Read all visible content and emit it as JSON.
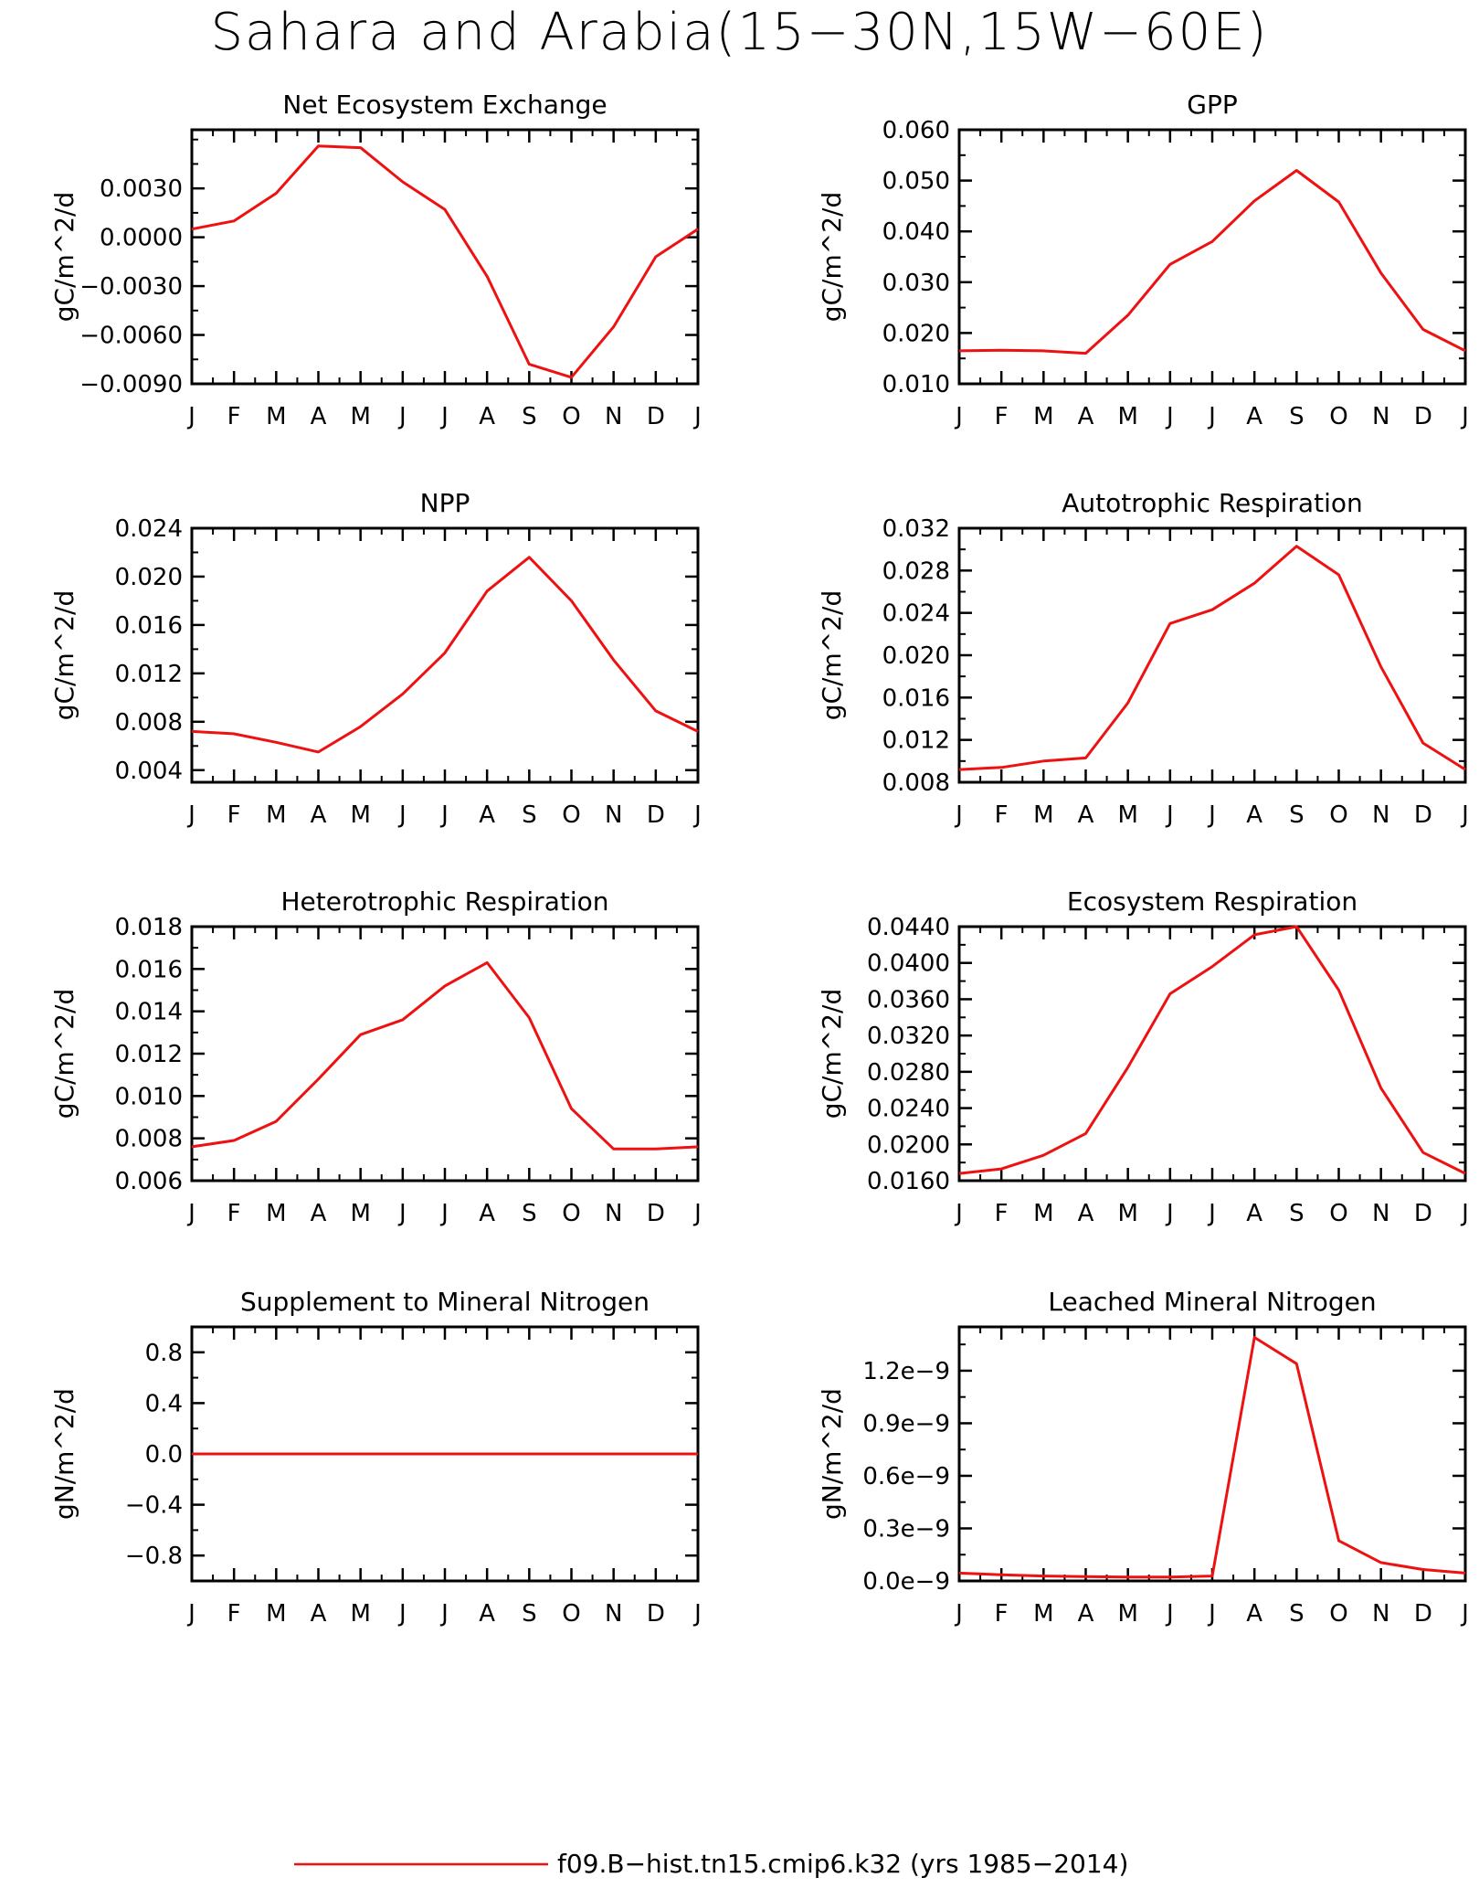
{
  "figure": {
    "title": "Sahara and Arabia(15−30N,15W−60E)",
    "line_color": "#ee1111"
  },
  "legend": {
    "label": "f09.B−hist.tn15.cmip6.k32 (yrs 1985−2014)"
  },
  "months": [
    "J",
    "F",
    "M",
    "A",
    "M",
    "J",
    "J",
    "A",
    "S",
    "O",
    "N",
    "D",
    "J"
  ],
  "chart_data": [
    {
      "type": "line",
      "title": "Net Ecosystem Exchange",
      "ylabel": "gC/m^2/d",
      "ylim": [
        -0.009,
        0.0066
      ],
      "yticks": [
        -0.009,
        -0.006,
        -0.003,
        0.0,
        0.003
      ],
      "ytick_labels": [
        "−0.0090",
        "−0.0060",
        "−0.0030",
        "0.0000",
        "0.0030"
      ],
      "values": [
        0.0005,
        0.001,
        0.0027,
        0.0056,
        0.0055,
        0.0034,
        0.0017,
        -0.0024,
        -0.0078,
        -0.0086,
        -0.0055,
        -0.0012,
        0.0005
      ]
    },
    {
      "type": "line",
      "title": "GPP",
      "ylabel": "gC/m^2/d",
      "ylim": [
        0.01,
        0.06
      ],
      "yticks": [
        0.01,
        0.02,
        0.03,
        0.04,
        0.05,
        0.06
      ],
      "ytick_labels": [
        "0.010",
        "0.020",
        "0.030",
        "0.040",
        "0.050",
        "0.060"
      ],
      "values": [
        0.0165,
        0.0166,
        0.0165,
        0.016,
        0.0235,
        0.0335,
        0.038,
        0.046,
        0.052,
        0.0458,
        0.0318,
        0.0207,
        0.0165
      ]
    },
    {
      "type": "line",
      "title": "NPP",
      "ylabel": "gC/m^2/d",
      "ylim": [
        0.003,
        0.024
      ],
      "yticks": [
        0.004,
        0.008,
        0.012,
        0.016,
        0.02,
        0.024
      ],
      "ytick_labels": [
        "0.004",
        "0.008",
        "0.012",
        "0.016",
        "0.020",
        "0.024"
      ],
      "values": [
        0.0072,
        0.007,
        0.0063,
        0.0055,
        0.0076,
        0.0103,
        0.0137,
        0.0188,
        0.0216,
        0.018,
        0.0131,
        0.0089,
        0.0072
      ]
    },
    {
      "type": "line",
      "title": "Autotrophic Respiration",
      "ylabel": "gC/m^2/d",
      "ylim": [
        0.008,
        0.032
      ],
      "yticks": [
        0.008,
        0.012,
        0.016,
        0.02,
        0.024,
        0.028,
        0.032
      ],
      "ytick_labels": [
        "0.008",
        "0.012",
        "0.016",
        "0.020",
        "0.024",
        "0.028",
        "0.032"
      ],
      "values": [
        0.0092,
        0.0094,
        0.01,
        0.0103,
        0.0155,
        0.023,
        0.0243,
        0.0268,
        0.0303,
        0.0276,
        0.0189,
        0.0117,
        0.0092
      ]
    },
    {
      "type": "line",
      "title": "Heterotrophic Respiration",
      "ylabel": "gC/m^2/d",
      "ylim": [
        0.006,
        0.018
      ],
      "yticks": [
        0.006,
        0.008,
        0.01,
        0.012,
        0.014,
        0.016,
        0.018
      ],
      "ytick_labels": [
        "0.006",
        "0.008",
        "0.010",
        "0.012",
        "0.014",
        "0.016",
        "0.018"
      ],
      "values": [
        0.0076,
        0.0079,
        0.0088,
        0.0108,
        0.0129,
        0.0136,
        0.0152,
        0.0163,
        0.0137,
        0.0094,
        0.0075,
        0.0075,
        0.0076
      ]
    },
    {
      "type": "line",
      "title": "Ecosystem Respiration",
      "ylabel": "gC/m^2/d",
      "ylim": [
        0.016,
        0.044
      ],
      "yticks": [
        0.016,
        0.02,
        0.024,
        0.028,
        0.032,
        0.036,
        0.04,
        0.044
      ],
      "ytick_labels": [
        "0.0160",
        "0.0200",
        "0.0240",
        "0.0280",
        "0.0320",
        "0.0360",
        "0.0400",
        "0.0440"
      ],
      "values": [
        0.0168,
        0.0173,
        0.0188,
        0.0212,
        0.0285,
        0.0366,
        0.0396,
        0.0431,
        0.044,
        0.037,
        0.0262,
        0.0191,
        0.0168
      ]
    },
    {
      "type": "line",
      "title": "Supplement to Mineral Nitrogen",
      "ylabel": "gN/m^2/d",
      "ylim": [
        -1.0,
        1.0
      ],
      "yticks": [
        -0.8,
        -0.4,
        0.0,
        0.4,
        0.8
      ],
      "ytick_labels": [
        "−0.8",
        "−0.4",
        "0.0",
        "0.4",
        "0.8"
      ],
      "values": [
        0,
        0,
        0,
        0,
        0,
        0,
        0,
        0,
        0,
        0,
        0,
        0,
        0
      ]
    },
    {
      "type": "line",
      "title": "Leached Mineral Nitrogen",
      "ylabel": "gN/m^2/d",
      "ylim": [
        0.0,
        1.45e-09
      ],
      "yticks": [
        0.0,
        3e-10,
        6e-10,
        9e-10,
        1.2e-09
      ],
      "ytick_labels": [
        "0.0e−9",
        "0.3e−9",
        "0.6e−9",
        "0.9e−9",
        "1.2e−9"
      ],
      "values": [
        4.5e-11,
        3.5e-11,
        2.8e-11,
        2.5e-11,
        2.2e-11,
        2.2e-11,
        2.8e-11,
        1.39e-09,
        1.24e-09,
        2.3e-10,
        1.05e-10,
        6.5e-11,
        4.5e-11
      ]
    }
  ]
}
